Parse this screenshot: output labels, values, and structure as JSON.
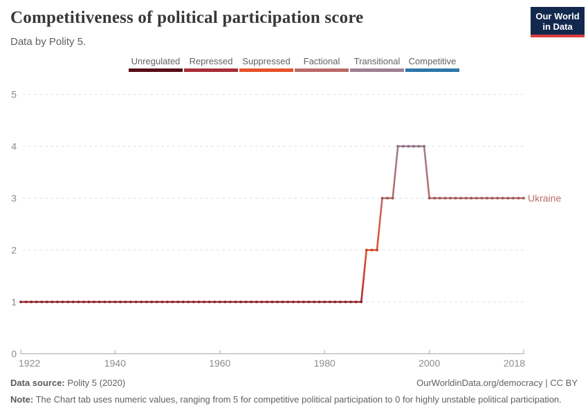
{
  "header": {
    "title": "Competitiveness of political participation score",
    "subtitle": "Data by Polity 5.",
    "logo": {
      "line1": "Our World",
      "line2": "in Data",
      "bg_color": "#12294d",
      "accent_color": "#d73c3f"
    }
  },
  "legend": {
    "items": [
      {
        "label": "Unregulated",
        "color": "#570d17"
      },
      {
        "label": "Repressed",
        "color": "#a82d36"
      },
      {
        "label": "Suppressed",
        "color": "#e8502b"
      },
      {
        "label": "Factional",
        "color": "#bc6a6a"
      },
      {
        "label": "Transitional",
        "color": "#9f8093"
      },
      {
        "label": "Competitive",
        "color": "#2e76ab"
      }
    ]
  },
  "chart_data": {
    "type": "line",
    "title": "Competitiveness of political participation score",
    "xlabel": "",
    "ylabel": "",
    "xlim": [
      1922,
      2018
    ],
    "ylim": [
      0,
      5
    ],
    "xticks": [
      1922,
      1940,
      1960,
      1980,
      2000,
      2018
    ],
    "yticks": [
      0,
      1,
      2,
      3,
      4,
      5
    ],
    "grid": "horizontal-dashed",
    "series": [
      {
        "name": "Ukraine",
        "segments": [
          {
            "from": 1922,
            "to": 1987,
            "value": 1
          },
          {
            "from": 1988,
            "to": 1990,
            "value": 2
          },
          {
            "from": 1991,
            "to": 1993,
            "value": 3
          },
          {
            "from": 1994,
            "to": 1999,
            "value": 4
          },
          {
            "from": 2000,
            "to": 2018,
            "value": 3
          }
        ]
      }
    ],
    "value_colors": {
      "0": "#570d17",
      "1": "#a82d36",
      "2": "#e8502b",
      "3": "#bc6a6a",
      "4": "#9f8093",
      "5": "#2e76ab"
    },
    "axis_color": "#a9a9a9",
    "grid_color": "#e3e3e3",
    "tick_label_color": "#8b8b8b"
  },
  "footer": {
    "source_label": "Data source:",
    "source_text": " Polity 5 (2020)",
    "link_text": "OurWorldinData.org/democracy | CC BY",
    "note_label": "Note:",
    "note_text": " The Chart tab uses numeric values, ranging from 5 for competitive political participation to 0 for highly unstable political participation."
  }
}
